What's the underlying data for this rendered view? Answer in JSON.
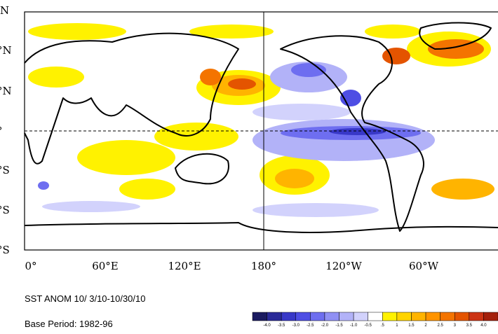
{
  "map": {
    "lat_labels": [
      "N",
      "°N",
      "°N",
      "°",
      "°S",
      "°S",
      "°S"
    ],
    "lon_labels": [
      "0°",
      "60°E",
      "120°E",
      "180°",
      "120°W",
      "60°W"
    ],
    "title": "SST ANOM 10/ 3/10-10/30/10",
    "base_period": "Base Period: 1982-96",
    "colorbar": {
      "labels": [
        "-4.0",
        "-3.5",
        "-3.0",
        "-2.5",
        "-2.0",
        "-1.5",
        "-1.0",
        "-0.5",
        ".5",
        "1",
        "1.5",
        "2",
        "2.5",
        "3",
        "3.5",
        "4.0"
      ],
      "colors": [
        "#1b1b60",
        "#2a2a98",
        "#3838c8",
        "#4e4ee4",
        "#6e6ef0",
        "#9090f4",
        "#b2b2f8",
        "#d2d2fc",
        "#ffffff",
        "#fff200",
        "#ffd400",
        "#ffb400",
        "#ff9400",
        "#f47400",
        "#e45400",
        "#cc3414",
        "#a4200c"
      ]
    }
  }
}
